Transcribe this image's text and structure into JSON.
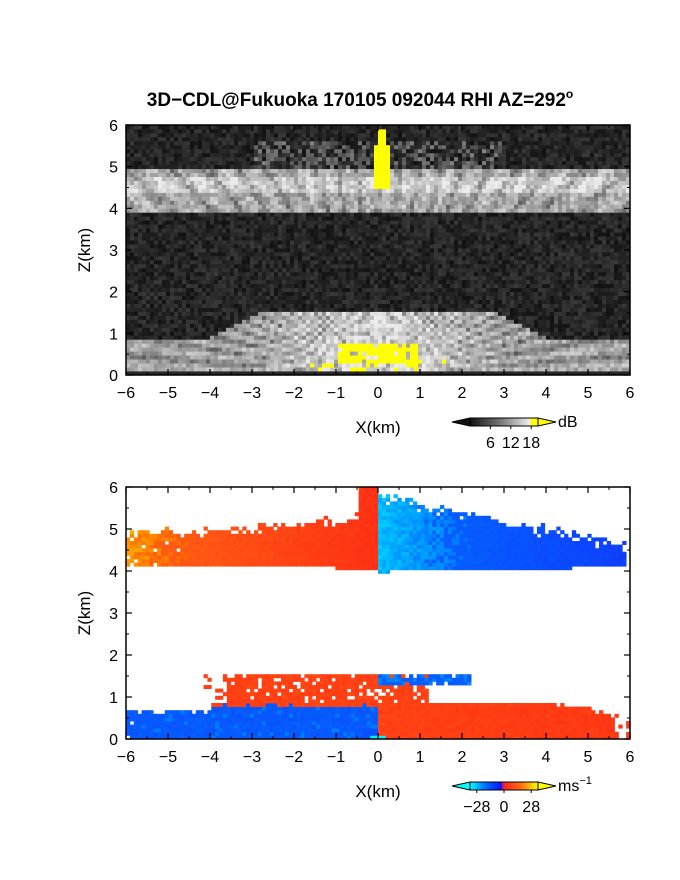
{
  "title": "3D−CDL@Fukuoka 170105 092044 RHI AZ=292",
  "title_sup": "o",
  "chart_data": [
    {
      "type": "heatmap",
      "quantity": "reflectivity",
      "xlabel": "X(km)",
      "ylabel": "Z(km)",
      "xlim": [
        -6,
        6
      ],
      "ylim": [
        0,
        6
      ],
      "xticks": [
        "−6",
        "−5",
        "−4",
        "−3",
        "−2",
        "−1",
        "0",
        "1",
        "2",
        "3",
        "4",
        "5",
        "6"
      ],
      "yticks": [
        "0",
        "1",
        "2",
        "3",
        "4",
        "5",
        "6"
      ],
      "colorbar": {
        "unit": "dB",
        "ticks": [
          "6",
          "12",
          "18"
        ],
        "range": [
          0,
          20
        ],
        "colormap": "gray-to-yellow"
      },
      "layers": [
        {
          "name": "upper layer",
          "z_range": [
            3.9,
            5.0
          ],
          "level_dB": 10
        },
        {
          "name": "lower layer",
          "z_range": [
            0.0,
            1.5
          ],
          "level_dB": 12
        },
        {
          "name": "strong echo near radar",
          "x_range": [
            -1.0,
            1.0
          ],
          "z_range": [
            0.3,
            0.8
          ],
          "level_dB": 19
        },
        {
          "name": "strong echo aloft",
          "x_range": [
            -0.1,
            0.3
          ],
          "z_range": [
            4.5,
            5.5
          ],
          "level_dB": 19
        }
      ]
    },
    {
      "type": "heatmap",
      "quantity": "doppler velocity",
      "xlabel": "X(km)",
      "ylabel": "Z(km)",
      "xlim": [
        -6,
        6
      ],
      "ylim": [
        0,
        6
      ],
      "xticks": [
        "−6",
        "−5",
        "−4",
        "−3",
        "−2",
        "−1",
        "0",
        "1",
        "2",
        "3",
        "4",
        "5",
        "6"
      ],
      "yticks": [
        "0",
        "1",
        "2",
        "3",
        "4",
        "5",
        "6"
      ],
      "colorbar": {
        "unit": "ms",
        "unit_sup": "−1",
        "ticks": [
          "−28",
          "0",
          "28"
        ],
        "range": [
          -35,
          35
        ],
        "colormap": "cyan-blue-red-yellow"
      },
      "regions": [
        {
          "x_range": [
            -6,
            0
          ],
          "z_range": [
            4.0,
            5.2
          ],
          "velocity_ms": [
            25,
            5
          ]
        },
        {
          "x_range": [
            0,
            6
          ],
          "z_range": [
            4.0,
            5.8
          ],
          "velocity_ms": [
            -28,
            -8
          ]
        },
        {
          "x_range": [
            -6,
            0
          ],
          "z_range": [
            0.0,
            0.8
          ],
          "velocity_ms": [
            -25,
            -18
          ]
        },
        {
          "x_range": [
            -4,
            2
          ],
          "z_range": [
            0.8,
            1.5
          ],
          "velocity_ms": [
            15,
            15
          ]
        },
        {
          "x_range": [
            0,
            6
          ],
          "z_range": [
            0.0,
            0.8
          ],
          "velocity_ms": [
            15,
            10
          ]
        }
      ]
    }
  ]
}
